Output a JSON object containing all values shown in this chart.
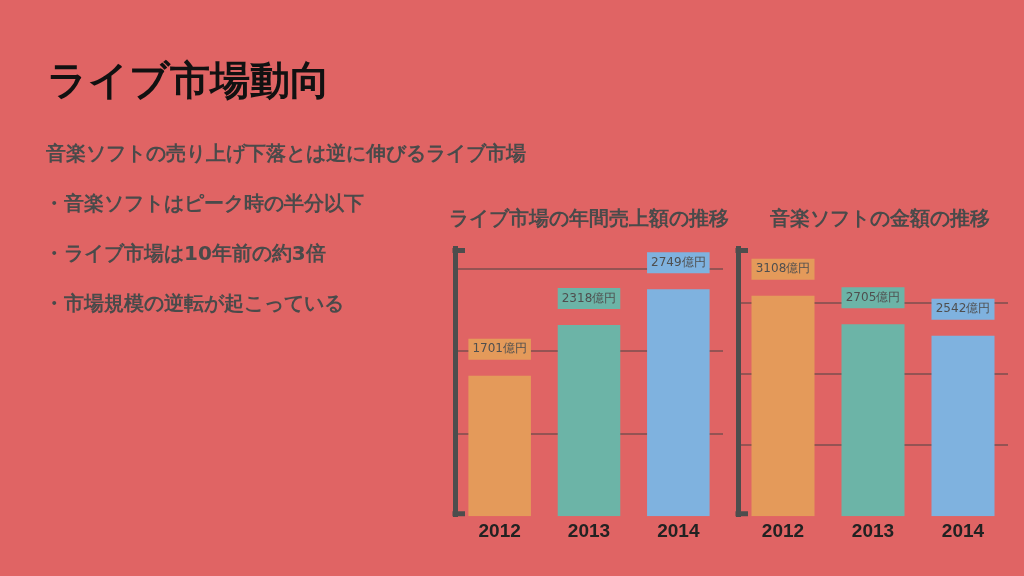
{
  "chart_data": [
    {
      "type": "other",
      "title": "ライブ市場動向",
      "subtitle": "音楽ソフトの売り上げ下落とは逆に伸びるライブ市場",
      "annotations": [
        "・音楽ソフトはピーク時の半分以下",
        "・ライブ市場は10年前の約3倍",
        "・市場規模の逆転が起こっている"
      ]
    },
    {
      "type": "bar",
      "title": "ライブ市場の年間売上額の推移",
      "categories": [
        "2012",
        "2013",
        "2014"
      ],
      "values": [
        1701,
        2318,
        2749
      ],
      "colors": [
        "#e49a5a",
        "#6cb4a7",
        "#7fb2df"
      ],
      "value_labels": [
        "1701億円",
        "2318億円",
        "2749億円"
      ],
      "ylim": [
        0,
        3250
      ],
      "yticks": [
        {
          "value": 1000,
          "label": null
        },
        {
          "value": 2000,
          "label": null
        },
        {
          "value": 3000,
          "label": null
        }
      ],
      "grid": "y",
      "tick_labels": "x"
    },
    {
      "type": "bar",
      "title": "音楽ソフトの金額の推移",
      "categories": [
        "2012",
        "2013",
        "2014"
      ],
      "values": [
        3108,
        2705,
        2542
      ],
      "colors": [
        "#e49a5a",
        "#6cb4a7",
        "#7fb2df"
      ],
      "value_labels": [
        "3108億円",
        "2705億円",
        "2542億円"
      ],
      "ylim": [
        0,
        3780
      ],
      "yticks": [
        {
          "value": 1000,
          "label": null
        },
        {
          "value": 2000,
          "label": null
        },
        {
          "value": 3000,
          "label": null
        }
      ],
      "grid": "y",
      "tick_labels": "x"
    }
  ]
}
